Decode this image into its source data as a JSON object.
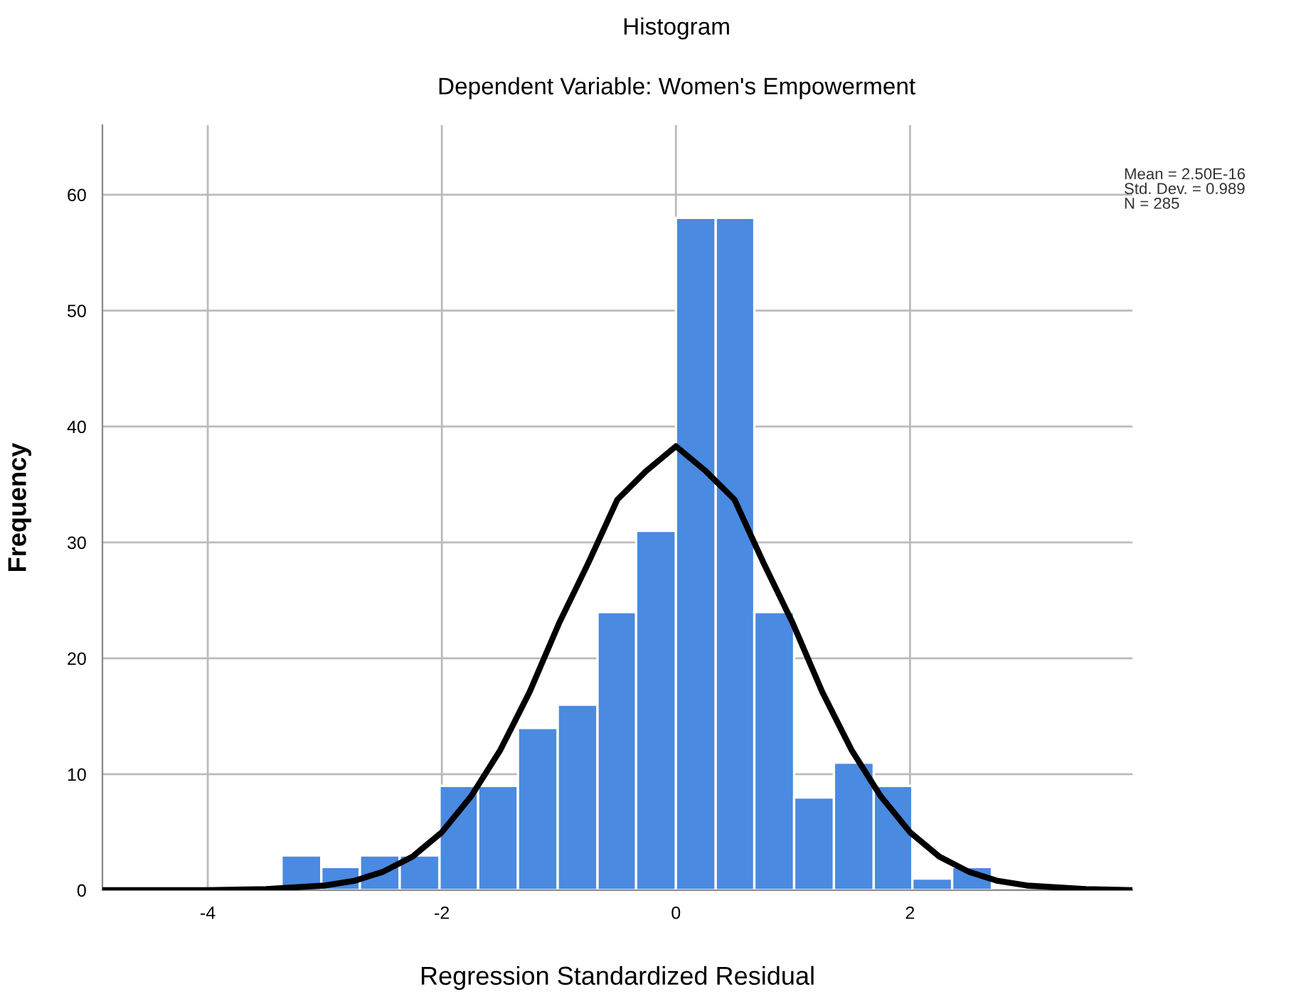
{
  "chart_data": {
    "type": "histogram",
    "title": "Histogram",
    "subtitle": "Dependent Variable: Women's Empowerment",
    "xlabel": "Regression Standardized Residual",
    "ylabel": "Frequency",
    "bins": [
      -3.37,
      -3.03,
      -2.7,
      -2.36,
      -2.02,
      -1.69,
      -1.35,
      -1.01,
      -0.67,
      -0.34,
      0,
      0.34,
      0.67,
      1.01,
      1.35,
      1.69,
      2.02,
      2.36,
      2.7
    ],
    "values": [
      3,
      2,
      3,
      3,
      9,
      9,
      14,
      16,
      24,
      31,
      58,
      58,
      24,
      8,
      11,
      9,
      1,
      2
    ],
    "color": "#4a8ae0",
    "series": [
      {
        "type": "line",
        "color": "#000000",
        "x": [
          -4.9,
          -4,
          -3.5,
          -3,
          -2.75,
          -2.5,
          -2.25,
          -2,
          -1.75,
          -1.5,
          -1.25,
          -1,
          -0.75,
          -0.5,
          -0.25,
          0,
          0.25,
          0.5,
          0.75,
          1,
          1.25,
          1.5,
          1.75,
          2,
          2.25,
          2.5,
          2.75,
          3,
          3.5,
          3.9
        ],
        "values": [
          0,
          0,
          0.1,
          0.4,
          0.8,
          1.6,
          2.9,
          5,
          8.1,
          12.1,
          17.1,
          23,
          28.2,
          33.7,
          36.2,
          38.3,
          36.2,
          33.7,
          28.2,
          23,
          17.1,
          12.1,
          8.1,
          5,
          2.9,
          1.6,
          0.8,
          0.4,
          0.1,
          0
        ]
      }
    ],
    "xlim": [
      -4.9,
      3.9
    ],
    "ylim": [
      0,
      66
    ],
    "xticks": [
      -4,
      -2,
      0,
      2
    ],
    "yticks": [
      0,
      10,
      20,
      30,
      40,
      50,
      60
    ],
    "grid": true,
    "annotations": [
      "Mean = 2.50E-16\nStd. Dev. = 0.989\nN = 285"
    ]
  }
}
